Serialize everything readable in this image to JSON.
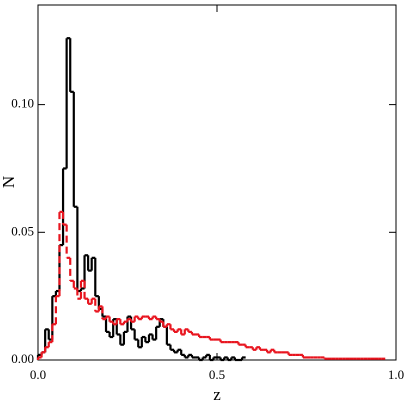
{
  "chart_data": {
    "type": "histogram",
    "xlabel": "z",
    "ylabel": "N",
    "bins": [
      0,
      0.01,
      0.02,
      0.03,
      0.04,
      0.05,
      0.06,
      0.07,
      0.08,
      0.09,
      0.1,
      0.11,
      0.12,
      0.13,
      0.14,
      0.15,
      0.16,
      0.17,
      0.18,
      0.19,
      0.2,
      0.21,
      0.22,
      0.23,
      0.24,
      0.25,
      0.26,
      0.27,
      0.28,
      0.29,
      0.3,
      0.31,
      0.32,
      0.33,
      0.34,
      0.35,
      0.36,
      0.37,
      0.38,
      0.39,
      0.4,
      0.41,
      0.42,
      0.43,
      0.44,
      0.45,
      0.46,
      0.47,
      0.48,
      0.49,
      0.5,
      0.51,
      0.52,
      0.53,
      0.54,
      0.55,
      0.56,
      0.57,
      0.58,
      0.59,
      0.6,
      0.61,
      0.62,
      0.63,
      0.64,
      0.65,
      0.66,
      0.67,
      0.68,
      0.69,
      0.7,
      0.71,
      0.72,
      0.73,
      0.74,
      0.75,
      0.76,
      0.77,
      0.78,
      0.79,
      0.8,
      0.81,
      0.82,
      0.83,
      0.84,
      0.85,
      0.86,
      0.87,
      0.88,
      0.89,
      0.9,
      0.91,
      0.92,
      0.93,
      0.94,
      0.95,
      0.96,
      0.97,
      0.98,
      0.99,
      1.0
    ],
    "series": [
      {
        "color": "#000000",
        "linestyle": "solid",
        "values": [
          0.002,
          0.003,
          0.012,
          0.008,
          0.025,
          0.027,
          0.045,
          0.075,
          0.126,
          0.105,
          0.06,
          0.027,
          0.028,
          0.041,
          0.035,
          0.04,
          0.025,
          0.02,
          0.017,
          0.011,
          0.009,
          0.016,
          0.01,
          0.006,
          0.011,
          0.017,
          0.012,
          0.008,
          0.005,
          0.009,
          0.007,
          0.01,
          0.008,
          0.013,
          0.016,
          0.013,
          0.006,
          0.004,
          0.003,
          0.004,
          0.002,
          0.001,
          0.002,
          0.001,
          0.001,
          0.0,
          0.001,
          0.002,
          0.0,
          0.001,
          0.001,
          0.0,
          0.001,
          0.0,
          0.001,
          0.0,
          0.0,
          0.001,
          null,
          null,
          null,
          null,
          null,
          null,
          null,
          null,
          null,
          null,
          null,
          null,
          null,
          null,
          null,
          null,
          null,
          null,
          null,
          null,
          null,
          null,
          null,
          null,
          null,
          null,
          null,
          null,
          null,
          null,
          null,
          null,
          null,
          null,
          null,
          null,
          null,
          null,
          null,
          null,
          null,
          null
        ]
      },
      {
        "color": "#e8141e",
        "linestyle": "dashed",
        "values": [
          0.001,
          0.003,
          0.005,
          0.007,
          0.014,
          0.025,
          0.058,
          0.053,
          0.04,
          0.031,
          0.028,
          0.024,
          0.031,
          0.024,
          0.022,
          0.024,
          0.019,
          0.021,
          0.016,
          0.017,
          0.015,
          0.014,
          0.016,
          0.014,
          0.015,
          0.016,
          0.015,
          0.017,
          0.016,
          0.017,
          0.017,
          0.016,
          0.017,
          0.016,
          0.015,
          0.013,
          0.014,
          0.012,
          0.011,
          0.012,
          0.01,
          0.012,
          0.011,
          0.01,
          0.01,
          0.009,
          0.009,
          0.009,
          0.008,
          0.008,
          0.008,
          0.007,
          0.007,
          0.007,
          0.007,
          0.007,
          0.006,
          0.006,
          0.005,
          0.005,
          0.004,
          0.005,
          0.004,
          0.004,
          0.003,
          0.004,
          0.003,
          0.003,
          0.003,
          0.003,
          0.002,
          0.002,
          0.002,
          0.002,
          0.001,
          0.001,
          0.001,
          0.001,
          0.001,
          0.001,
          0.0005,
          0.0005,
          0.0005,
          0.0005,
          0.0005,
          0.0005,
          0.0005,
          0.0005,
          0.0005,
          0.0005,
          0.0005,
          0.0005,
          0.0005,
          0.0005,
          0.0005,
          0.0005,
          0.0005,
          null,
          null,
          null
        ]
      }
    ],
    "xlim": [
      0,
      1.0
    ],
    "ylim": [
      0,
      0.139
    ],
    "xticks": [
      {
        "value": 0,
        "label": "0.0"
      },
      {
        "value": 0.5,
        "label": "0.5"
      },
      {
        "value": 1.0,
        "label": "1.0"
      }
    ],
    "yticks": [
      {
        "value": 0,
        "label": "0.00"
      },
      {
        "value": 0.05,
        "label": "0.05"
      },
      {
        "value": 0.1,
        "label": "0.10"
      }
    ],
    "grid": false
  }
}
